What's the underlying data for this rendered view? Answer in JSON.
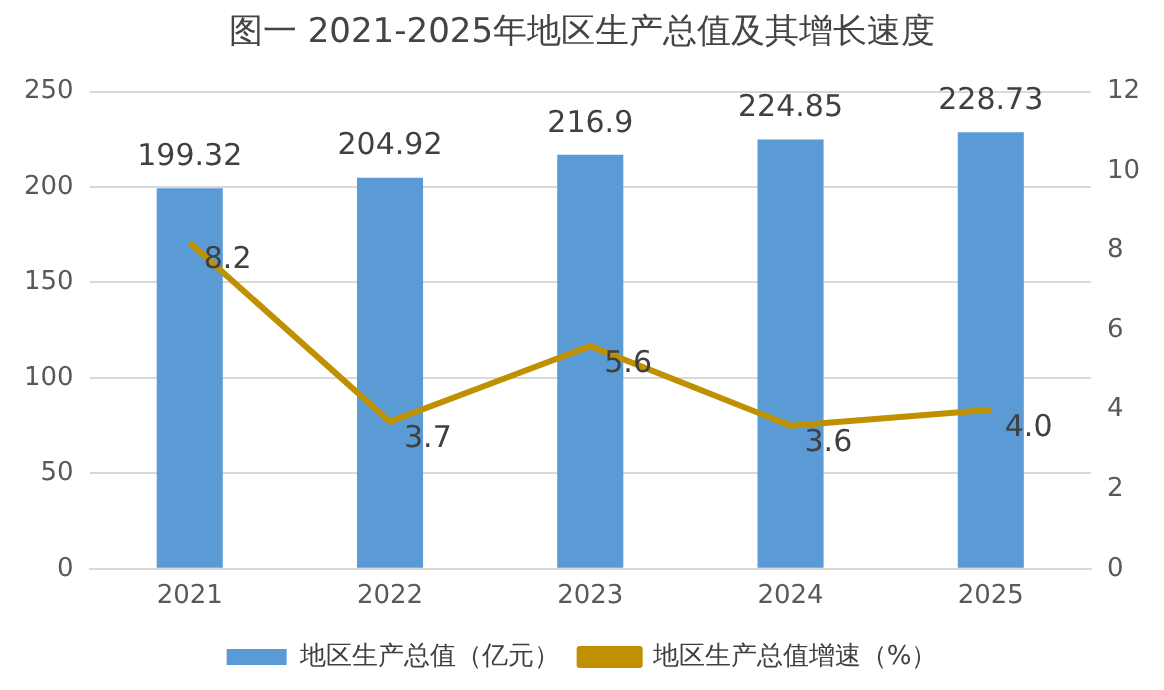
{
  "chart_data": {
    "type": "bar",
    "title": "图一  2021-2025年地区生产总值及其增长速度",
    "categories": [
      "2021",
      "2022",
      "2023",
      "2024",
      "2025"
    ],
    "series": [
      {
        "name": "地区生产总值（亿元）",
        "color": "#5b9bd5",
        "values": [
          199.32,
          204.92,
          216.9,
          224.85,
          228.73
        ],
        "value_labels": [
          "199.32",
          "204.92",
          "216.9",
          "224.85",
          "228.73"
        ]
      },
      {
        "name": "地区生产总值增速（%）",
        "type": "line",
        "axis": "y2",
        "color": "#bf9000",
        "values": [
          8.2,
          3.7,
          5.6,
          3.6,
          4.0
        ],
        "value_labels": [
          "8.2",
          "3.7",
          "5.6",
          "3.6",
          "4.0"
        ]
      }
    ],
    "ylim": [
      0,
      250
    ],
    "yticks": [
      0,
      50,
      100,
      150,
      200,
      250
    ],
    "y2lim": [
      0,
      12
    ],
    "y2ticks": [
      0,
      2,
      4,
      6,
      8,
      10,
      12
    ],
    "grid": "y",
    "legend": "bottom",
    "marker": "none",
    "line_style": "solid"
  }
}
